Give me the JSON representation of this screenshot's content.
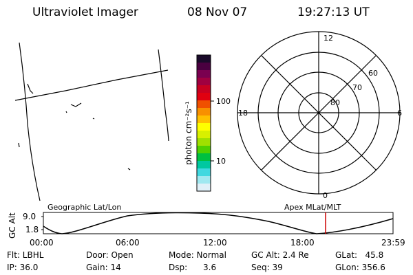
{
  "header": {
    "title": "Ultraviolet Imager",
    "date": "08 Nov 07",
    "time": "19:27:13 UT"
  },
  "colorbar": {
    "unit_label": "photon cm⁻²s⁻¹",
    "tick_labels": [
      "100",
      "10"
    ],
    "colors": [
      "#1a0a2a",
      "#4a0040",
      "#7a0050",
      "#a00040",
      "#c80020",
      "#e00010",
      "#f05000",
      "#f89000",
      "#ffc000",
      "#ffff00",
      "#d8f000",
      "#a0e000",
      "#50d000",
      "#00c040",
      "#00c8a0",
      "#40d8e0",
      "#a0e8f0",
      "#e0f0f8"
    ]
  },
  "polar": {
    "labels": {
      "top": "12",
      "bottom": "0",
      "left": "18",
      "right": "6",
      "ring1": "80",
      "ring2": "70",
      "ring3": "60"
    }
  },
  "timeline": {
    "left_label": "Geographic Lat/Lon",
    "right_label": "Apex MLat/MLT",
    "y_axis_label": "GC Alt",
    "y_max_label": "9.0",
    "y_min_label": "1.8",
    "x_tick_labels": [
      "00:00",
      "06:00",
      "12:00",
      "18:00",
      "23:59"
    ],
    "marker_color": "#cc0000"
  },
  "info": {
    "flt": "Flt: LBHL",
    "ip": "IP: 36.0",
    "door": "Door: Open",
    "gain": "Gain: 14",
    "mode": "Mode: Normal",
    "dsp": "Dsp:      3.6",
    "gc_alt": "GC Alt: 2.4 Re",
    "seq": "Seq: 39",
    "glat": "GLat:   45.8",
    "glon": "GLon: 356.6"
  }
}
